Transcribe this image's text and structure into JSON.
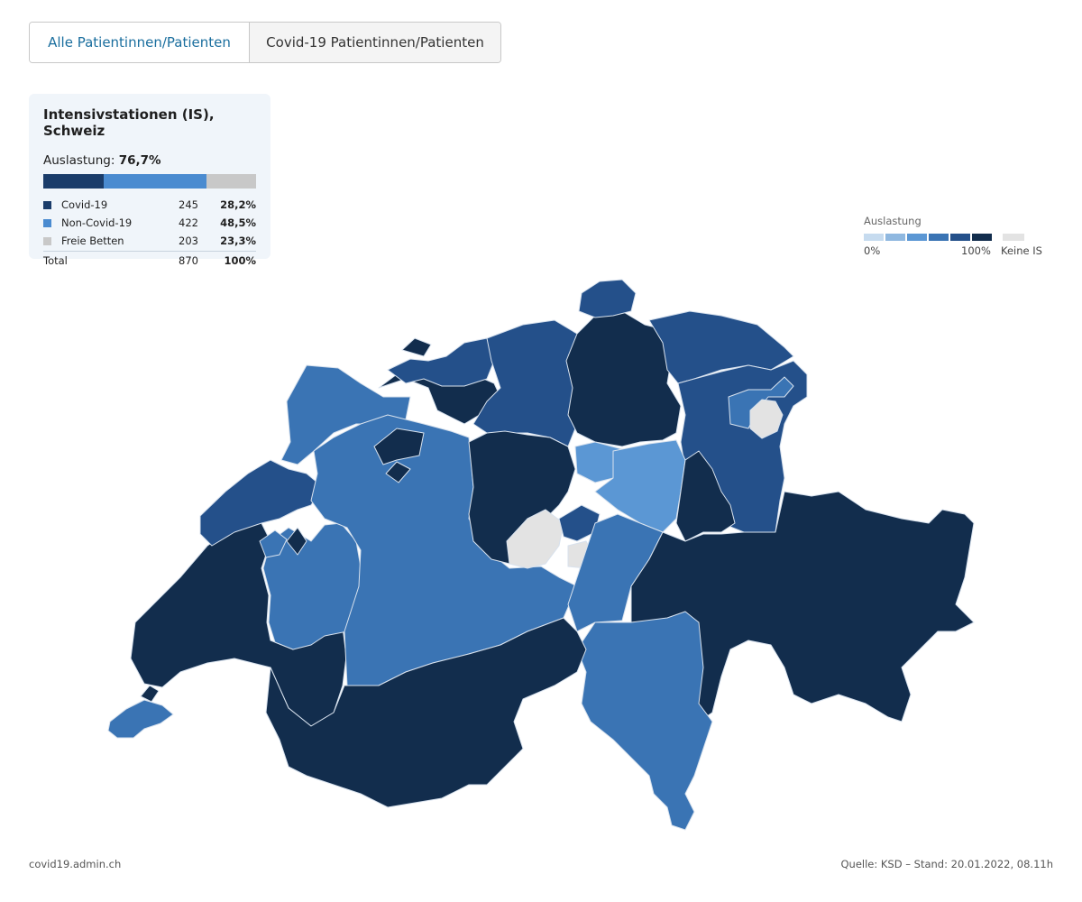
{
  "tabs": [
    {
      "label": "Alle Patientinnen/Patienten",
      "active": true
    },
    {
      "label": "Covid-19 Patientinnen/Patienten",
      "active": false
    }
  ],
  "summary": {
    "title": "Intensivstationen (IS), Schweiz",
    "util_label": "Auslastung:",
    "util_value": "76,7%",
    "rows": [
      {
        "label": "Covid-19",
        "count": "245",
        "pct": "28,2%",
        "color": "#1a3c6a",
        "share": 0.282
      },
      {
        "label": "Non-Covid-19",
        "count": "422",
        "pct": "48,5%",
        "color": "#4a8bd0",
        "share": 0.485
      },
      {
        "label": "Freie Betten",
        "count": "203",
        "pct": "23,3%",
        "color": "#c8c8c8",
        "share": 0.233
      }
    ],
    "total": {
      "label": "Total",
      "count": "870",
      "pct": "100%"
    }
  },
  "legend": {
    "title": "Auslastung",
    "min_label": "0%",
    "max_label": "100%",
    "nodata_label": "Keine IS",
    "ramp_colors": [
      "#c6dbef",
      "#8fb8e0",
      "#5b97d4",
      "#3a74b4",
      "#24508a",
      "#122d4d"
    ],
    "nodata_color": "#e3e3e3"
  },
  "map": {
    "colors": {
      "darkest": "#122d4d",
      "dark": "#24508a",
      "mid": "#3a74b4",
      "light": "#5b97d4",
      "nodata": "#e3e3e3",
      "border": "#d8e2ee"
    }
  },
  "footer": {
    "left": "covid19.admin.ch",
    "right": "Quelle: KSD – Stand: 20.01.2022, 08.11h"
  }
}
